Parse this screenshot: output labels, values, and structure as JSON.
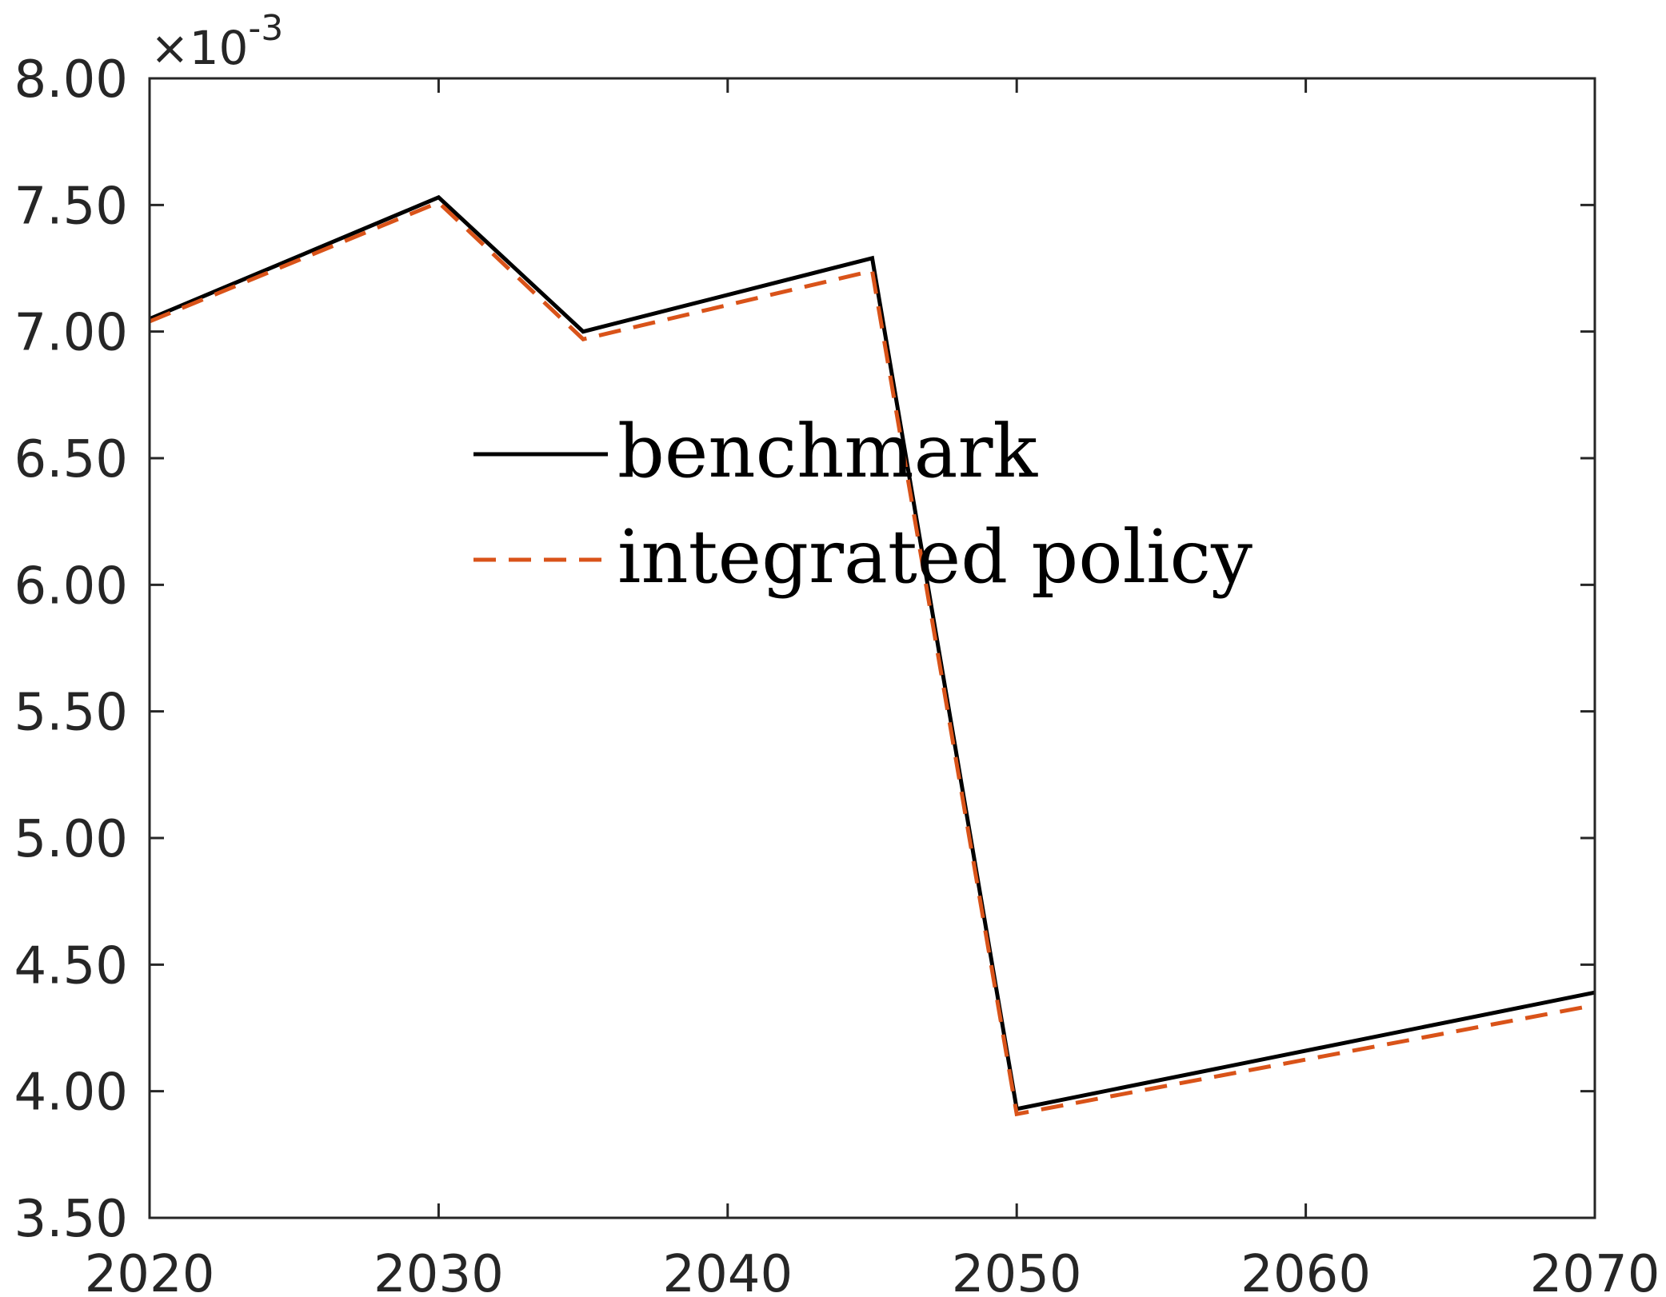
{
  "chart_data": {
    "type": "line",
    "title": "",
    "xlabel": "",
    "ylabel": "",
    "y_exponent_label": "×10",
    "y_exponent_power": "-3",
    "xlim": [
      2020,
      2070
    ],
    "ylim": [
      3.5,
      8.0
    ],
    "x_ticks": [
      2020,
      2030,
      2040,
      2050,
      2060,
      2070
    ],
    "x_tick_labels": [
      "2020",
      "2030",
      "2040",
      "2050",
      "2060",
      "2070"
    ],
    "y_ticks": [
      3.5,
      4.0,
      4.5,
      5.0,
      5.5,
      6.0,
      6.5,
      7.0,
      7.5,
      8.0
    ],
    "y_tick_labels": [
      "3.50",
      "4.00",
      "4.50",
      "5.00",
      "5.50",
      "6.00",
      "6.50",
      "7.00",
      "7.50",
      "8.00"
    ],
    "grid": false,
    "legend_position": "center",
    "series": [
      {
        "name": "benchmark",
        "color": "#000000",
        "style": "solid",
        "x": [
          2020,
          2030,
          2035,
          2045,
          2050,
          2070
        ],
        "y": [
          7.05,
          7.53,
          7.0,
          7.29,
          3.93,
          4.39
        ]
      },
      {
        "name": "integrated policy",
        "color": "#D95319",
        "style": "dashed",
        "x": [
          2020,
          2030,
          2035,
          2045,
          2050,
          2070
        ],
        "y": [
          7.04,
          7.51,
          6.97,
          7.24,
          3.91,
          4.34
        ]
      }
    ]
  }
}
